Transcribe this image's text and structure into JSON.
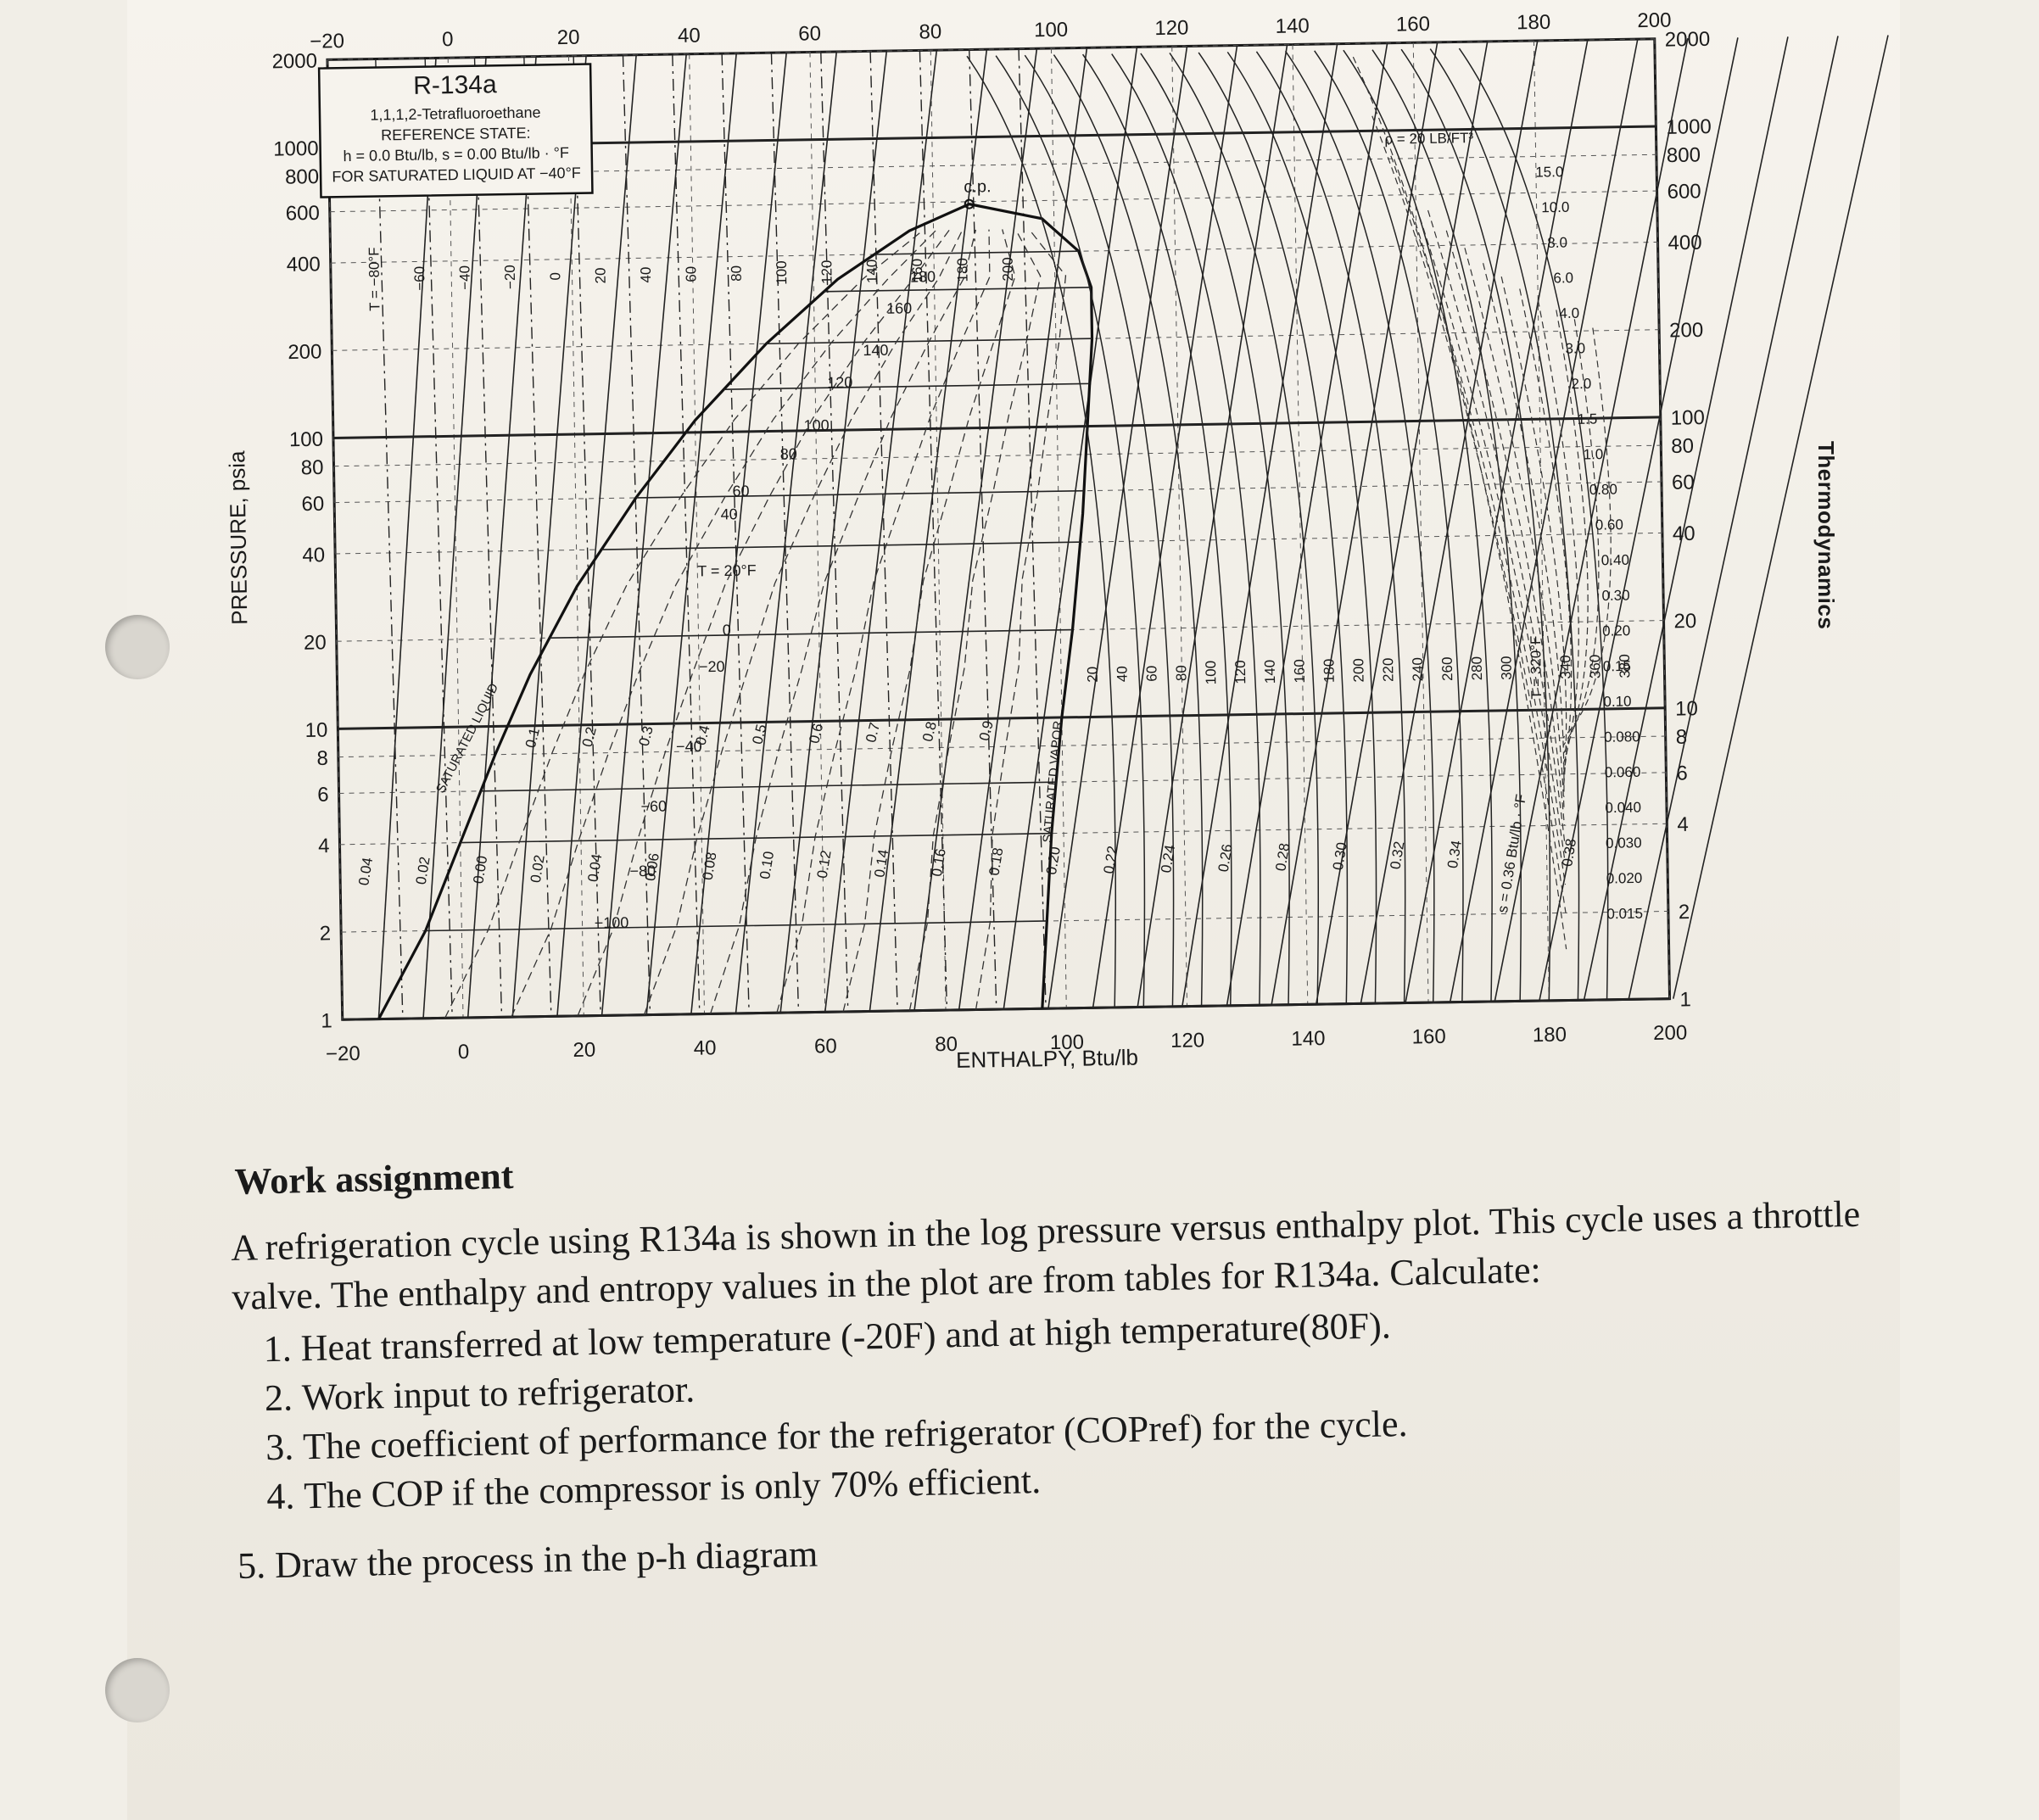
{
  "chart_data": {
    "type": "line",
    "title": "R-134a",
    "subtitle": "1,1,1,2-Tetrafluoroethane",
    "reference_state": [
      "REFERENCE STATE:",
      "h = 0.0 Btu/lb, s = 0.00 Btu/lb · °F",
      "FOR SATURATED LIQUID AT −40°F"
    ],
    "xlabel": "ENTHALPY, Btu/lb",
    "ylabel": "PRESSURE, psia",
    "xlim": [
      -20,
      200
    ],
    "ylim": [
      1,
      2000
    ],
    "y_scale": "log",
    "x_ticks": [
      -20,
      0,
      20,
      40,
      60,
      80,
      100,
      120,
      140,
      160,
      180,
      200
    ],
    "x_tick_labels": [
      "−20",
      "0",
      "20",
      "40",
      "60",
      "80",
      "100",
      "120",
      "140",
      "160",
      "180",
      "200"
    ],
    "y_ticks": [
      1,
      2,
      4,
      6,
      8,
      10,
      20,
      40,
      60,
      80,
      100,
      200,
      400,
      600,
      800,
      1000,
      2000
    ],
    "y_tick_labels": [
      "1",
      "2",
      "4",
      "6",
      "8",
      "10",
      "20",
      "40",
      "60",
      "80",
      "100",
      "200",
      "400",
      "600",
      "800",
      "1000",
      "2000"
    ],
    "grid": true,
    "saturation_dome": {
      "liquid": [
        [
          -14,
          1
        ],
        [
          -6,
          2
        ],
        [
          0,
          4
        ],
        [
          6,
          8
        ],
        [
          12,
          15
        ],
        [
          20,
          30
        ],
        [
          30,
          60
        ],
        [
          40,
          110
        ],
        [
          52,
          200
        ],
        [
          64,
          330
        ],
        [
          76,
          480
        ],
        [
          86,
          589
        ]
      ],
      "vapor": [
        [
          86,
          589
        ],
        [
          98,
          520
        ],
        [
          104,
          400
        ],
        [
          106,
          300
        ],
        [
          106,
          200
        ],
        [
          105,
          100
        ],
        [
          104,
          50
        ],
        [
          102,
          20
        ],
        [
          100,
          10
        ],
        [
          98,
          4
        ],
        [
          96,
          1
        ]
      ],
      "critical_point_label": "c.p."
    },
    "isotherm_labels_in_dome": [
      "180",
      "160",
      "140",
      "120",
      "100",
      "80",
      "60",
      "40",
      "T = 20°F",
      "0",
      "−20",
      "−40",
      "−60",
      "−80",
      "−100"
    ],
    "quality_labels": [
      "0.1",
      "0.2",
      "0.3",
      "0.4",
      "0.5",
      "0.6",
      "0.7",
      "0.8",
      "0.9"
    ],
    "entropy_labels": [
      "0.04",
      "0.02",
      "0.00",
      "0.02",
      "0.04",
      "0.06",
      "0.08",
      "0.10",
      "0.12",
      "0.14",
      "0.16",
      "0.18",
      "0.20",
      "0.22",
      "0.24",
      "0.26",
      "0.28",
      "0.30",
      "0.32",
      "0.34",
      "s = 0.36 Btu/lb · °F",
      "0.38"
    ],
    "superheat_isotherm_labels": [
      "20",
      "40",
      "60",
      "80",
      "100",
      "120",
      "140",
      "160",
      "180",
      "200",
      "220",
      "240",
      "260",
      "280",
      "300",
      "T = 320°F",
      "340",
      "360",
      "380"
    ],
    "liquid_isotherm_labels": [
      "T = −80°F",
      "−60",
      "−40",
      "−20",
      "0",
      "20",
      "40",
      "60",
      "80",
      "100",
      "120",
      "140",
      "160",
      "180",
      "200"
    ],
    "density_labels": [
      "ρ = 20 LB/FT³",
      "15.0",
      "10.0",
      "8.0",
      "6.0",
      "4.0",
      "3.0",
      "2.0",
      "1.5",
      "1.0",
      "0.80",
      "0.60",
      "0.40",
      "0.30",
      "0.20",
      "0.15",
      "0.10",
      "0.080",
      "0.060",
      "0.040",
      "0.030",
      "0.020",
      "0.015"
    ],
    "dome_labels": [
      "SATURATED LIQUID",
      "SATURATED VAPOR"
    ]
  },
  "side_label": "Thermodynamics",
  "assignment": {
    "heading": "Work assignment",
    "intro": "A refrigeration cycle using R134a is shown in the log pressure versus enthalpy plot. This cycle uses a throttle valve. The enthalpy and entropy values in the plot are from tables for R134a. Calculate:",
    "items": [
      "Heat transferred at low temperature (-20F) and at high temperature(80F).",
      "Work input to refrigerator.",
      "The coefficient of performance for the refrigerator (COPref) for the cycle.",
      "The COP if the compressor is only 70% efficient."
    ],
    "last": "5. Draw the process in the p-h diagram"
  }
}
